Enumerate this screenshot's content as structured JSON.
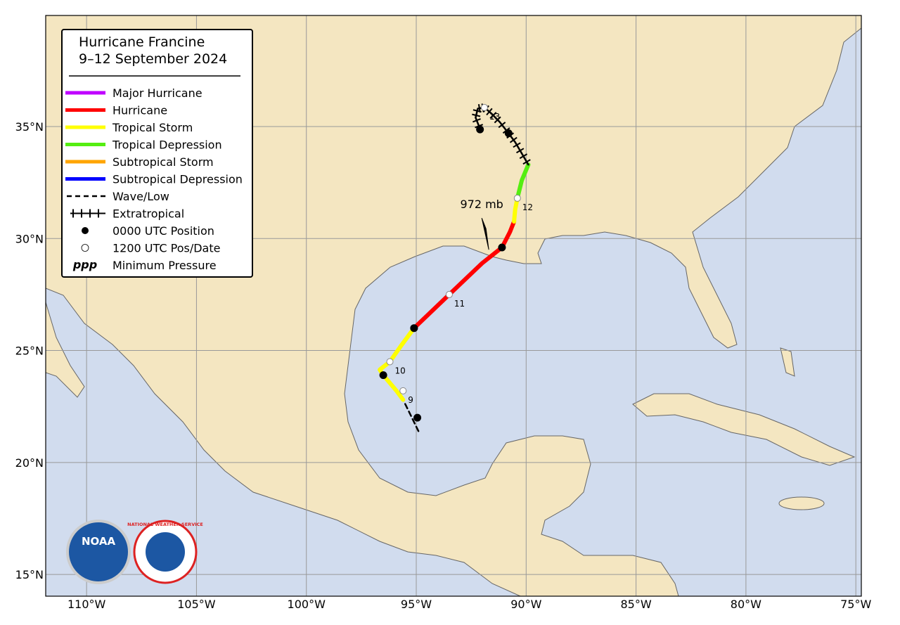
{
  "title": [
    "Hurricane Francine",
    "9–12 September 2024"
  ],
  "legend": [
    {
      "label": "Major Hurricane",
      "color": "#c000ff",
      "style": "solid"
    },
    {
      "label": "Hurricane",
      "color": "#ff0000",
      "style": "solid"
    },
    {
      "label": "Tropical Storm",
      "color": "#ffff00",
      "style": "solid"
    },
    {
      "label": "Tropical Depression",
      "color": "#55ee11",
      "style": "solid"
    },
    {
      "label": "Subtropical Storm",
      "color": "#ffa500",
      "style": "solid"
    },
    {
      "label": "Subtropical Depression",
      "color": "#0000ff",
      "style": "solid"
    },
    {
      "label": "Wave/Low",
      "color": "#000000",
      "style": "dashed"
    },
    {
      "label": "Extratropical",
      "color": "#000000",
      "style": "hatched"
    },
    {
      "label": "0000 UTC Position",
      "color": "#000000",
      "style": "dot-filled"
    },
    {
      "label": "1200 UTC Pos/Date",
      "color": "#000000",
      "style": "dot-open"
    },
    {
      "label": "Minimum Pressure",
      "symbol": "ppp",
      "style": "text"
    }
  ],
  "map": {
    "xlim": [
      -111.86,
      -74.75
    ],
    "ylim": [
      14.03,
      39.96
    ],
    "xticks": [
      {
        "value": -110,
        "label": "110°W"
      },
      {
        "value": -105,
        "label": "105°W"
      },
      {
        "value": -100,
        "label": "100°W"
      },
      {
        "value": -95,
        "label": "95°W"
      },
      {
        "value": -90,
        "label": "90°W"
      },
      {
        "value": -85,
        "label": "85°W"
      },
      {
        "value": -80,
        "label": "80°W"
      },
      {
        "value": -75,
        "label": "75°W"
      }
    ],
    "yticks": [
      {
        "value": 15,
        "label": "15°N"
      },
      {
        "value": 20,
        "label": "20°N"
      },
      {
        "value": 25,
        "label": "25°N"
      },
      {
        "value": 30,
        "label": "30°N"
      },
      {
        "value": 35,
        "label": "35°N"
      }
    ],
    "grid": true
  },
  "track": [
    {
      "status": "Wave/Low",
      "lon": [
        -94.9,
        -95.2,
        -95.6
      ],
      "lat": [
        21.4,
        22.0,
        22.8
      ]
    },
    {
      "status": "Tropical Storm",
      "lon": [
        -95.6,
        -95.9,
        -96.5,
        -96.66,
        -96.2,
        -95.7,
        -95.1
      ],
      "lat": [
        22.8,
        23.2,
        23.9,
        24.14,
        24.5,
        25.2,
        26.0
      ]
    },
    {
      "status": "Hurricane",
      "lon": [
        -95.1,
        -93.5,
        -92.0,
        -91.1,
        -90.74,
        -90.55
      ],
      "lat": [
        26.0,
        27.5,
        28.9,
        29.6,
        30.29,
        30.76
      ]
    },
    {
      "status": "Tropical Storm",
      "lon": [
        -90.55,
        -90.5,
        -90.4
      ],
      "lat": [
        30.76,
        31.3,
        31.8
      ]
    },
    {
      "status": "Tropical Depression",
      "lon": [
        -90.4,
        -90.2,
        -89.9
      ],
      "lat": [
        31.8,
        32.6,
        33.3
      ]
    },
    {
      "status": "Extratropical",
      "lon": [
        -89.9,
        -90.2,
        -90.5,
        -90.8,
        -91.2,
        -91.6,
        -91.9,
        -92.2,
        -92.3,
        -92.1
      ],
      "lat": [
        33.3,
        33.8,
        34.3,
        34.7,
        35.2,
        35.6,
        35.85,
        35.8,
        35.4,
        34.9
      ]
    }
  ],
  "positions": [
    {
      "time": "0000 UTC Position",
      "lon": -94.95,
      "lat": 22.0
    },
    {
      "time": "1200 UTC Pos/Date",
      "lon": -95.6,
      "lat": 23.2,
      "label": "9"
    },
    {
      "time": "0000 UTC Position",
      "lon": -96.5,
      "lat": 23.9
    },
    {
      "time": "1200 UTC Pos/Date",
      "lon": -96.2,
      "lat": 24.5,
      "label": "10"
    },
    {
      "time": "0000 UTC Position",
      "lon": -95.1,
      "lat": 26.0
    },
    {
      "time": "1200 UTC Pos/Date",
      "lon": -93.5,
      "lat": 27.5,
      "label": "11"
    },
    {
      "time": "0000 UTC Position",
      "lon": -91.1,
      "lat": 29.6
    },
    {
      "time": "1200 UTC Pos/Date",
      "lon": -90.4,
      "lat": 31.8,
      "label": "12"
    },
    {
      "time": "0000 UTC Position",
      "lon": -90.8,
      "lat": 34.7
    },
    {
      "time": "1200 UTC Pos/Date",
      "lon": -91.9,
      "lat": 35.85,
      "label": "13"
    },
    {
      "time": "0000 UTC Position",
      "lon": -92.1,
      "lat": 34.87
    }
  ],
  "min_pressure": {
    "label": "972 mb",
    "lon": -91.7,
    "lat": 29.5
  },
  "logos": [
    "NOAA",
    "NATIONAL WEATHER SERVICE"
  ]
}
